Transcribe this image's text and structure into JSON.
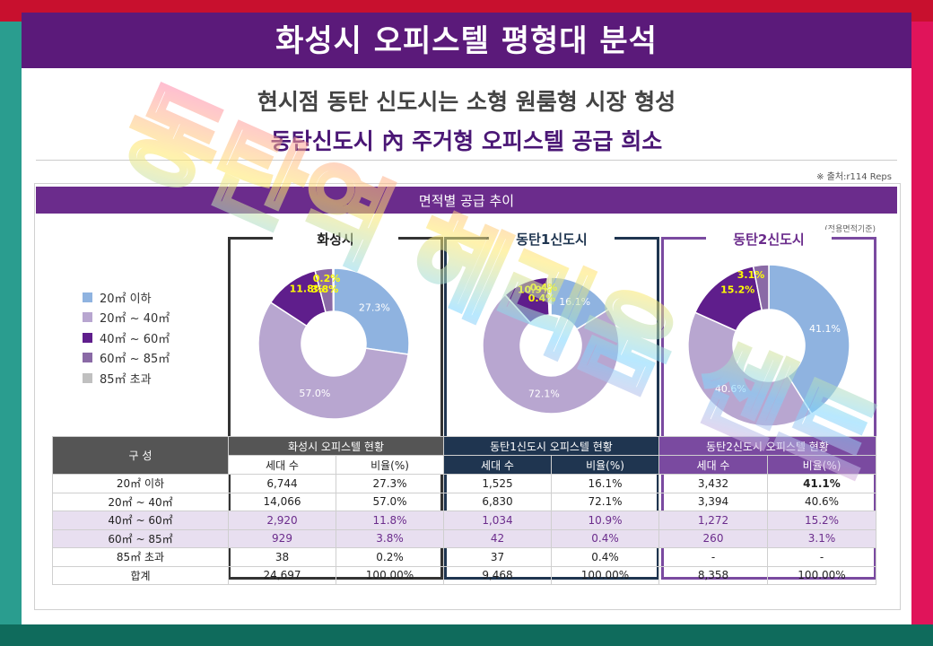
{
  "header": {
    "title": "화성시 오피스텔 평형대 분석"
  },
  "subtitle1": "현시점 동탄 신도시는 소형 원룸형 시장 형성",
  "subtitle2": "동탄신도시 內 주거형 오피스텔 공급 희소",
  "source": "※ 출처:r114 Reps",
  "panel": {
    "title": "면적별 공급 추이",
    "area_note": "(전용면적기준)"
  },
  "legend": [
    {
      "label": "20㎡ 이하",
      "color": "#8fb3e0"
    },
    {
      "label": "20㎡ ~ 40㎡",
      "color": "#b8a6d0"
    },
    {
      "label": "40㎡ ~ 60㎡",
      "color": "#5f1e8c"
    },
    {
      "label": "60㎡ ~ 85㎡",
      "color": "#8a6aa6"
    },
    {
      "label": "85㎡ 초과",
      "color": "#c0c0c0"
    }
  ],
  "chart_data": [
    {
      "type": "pie",
      "title": "화성시",
      "categories": [
        "20㎡ 이하",
        "20㎡ ~ 40㎡",
        "40㎡ ~ 60㎡",
        "60㎡ ~ 85㎡",
        "85㎡ 초과"
      ],
      "values": [
        27.3,
        57.0,
        11.8,
        3.8,
        0.2
      ],
      "labels": [
        "27.3%",
        "57.0%",
        "11.8%",
        "3.8%",
        "0.2%"
      ]
    },
    {
      "type": "pie",
      "title": "동탄1신도시",
      "categories": [
        "20㎡ 이하",
        "20㎡ ~ 40㎡",
        "40㎡ ~ 60㎡",
        "60㎡ ~ 85㎡",
        "85㎡ 초과"
      ],
      "values": [
        16.1,
        72.1,
        10.9,
        0.4,
        0.4
      ],
      "labels": [
        "16.1%",
        "72.1%",
        "10.9%",
        "0.4%",
        "0.4%"
      ]
    },
    {
      "type": "pie",
      "title": "동탄2신도시",
      "categories": [
        "20㎡ 이하",
        "20㎡ ~ 40㎡",
        "40㎡ ~ 60㎡",
        "60㎡ ~ 85㎡"
      ],
      "values": [
        41.1,
        40.6,
        15.2,
        3.1
      ],
      "labels": [
        "41.1%",
        "40.6%",
        "15.2%",
        "3.1%"
      ]
    },
    {
      "type": "table",
      "row_header": "구 성",
      "groups": [
        "화성시 오피스텔 현황",
        "동탄1신도시 오피스텔 현황",
        "동탄2신도시 오피스텔 현황"
      ],
      "sub_headers": [
        "세대 수",
        "비율(%)"
      ],
      "rows": [
        {
          "label": "20㎡ 이하",
          "values": [
            "6,744",
            "27.3%",
            "1,525",
            "16.1%",
            "3,432",
            "41.1%"
          ]
        },
        {
          "label": "20㎡ ~ 40㎡",
          "values": [
            "14,066",
            "57.0%",
            "6,830",
            "72.1%",
            "3,394",
            "40.6%"
          ]
        },
        {
          "label": "40㎡ ~ 60㎡",
          "values": [
            "2,920",
            "11.8%",
            "1,034",
            "10.9%",
            "1,272",
            "15.2%"
          ]
        },
        {
          "label": "60㎡ ~ 85㎡",
          "values": [
            "929",
            "3.8%",
            "42",
            "0.4%",
            "260",
            "3.1%"
          ]
        },
        {
          "label": "85㎡ 초과",
          "values": [
            "38",
            "0.2%",
            "37",
            "0.4%",
            "-",
            "-"
          ]
        },
        {
          "label": "합계",
          "values": [
            "24,697",
            "100.00%",
            "9,468",
            "100.00%",
            "8,358",
            "100.00%"
          ]
        }
      ]
    }
  ],
  "colors": {
    "header_bg": "#5b1a7a",
    "hwaseong_box": "#333333",
    "dongtan1_box": "#1f3550",
    "dongtan2_box": "#7a4aa0",
    "highlight_row": "#e8dff0"
  },
  "watermark": "동탄역 헤리움 센트"
}
